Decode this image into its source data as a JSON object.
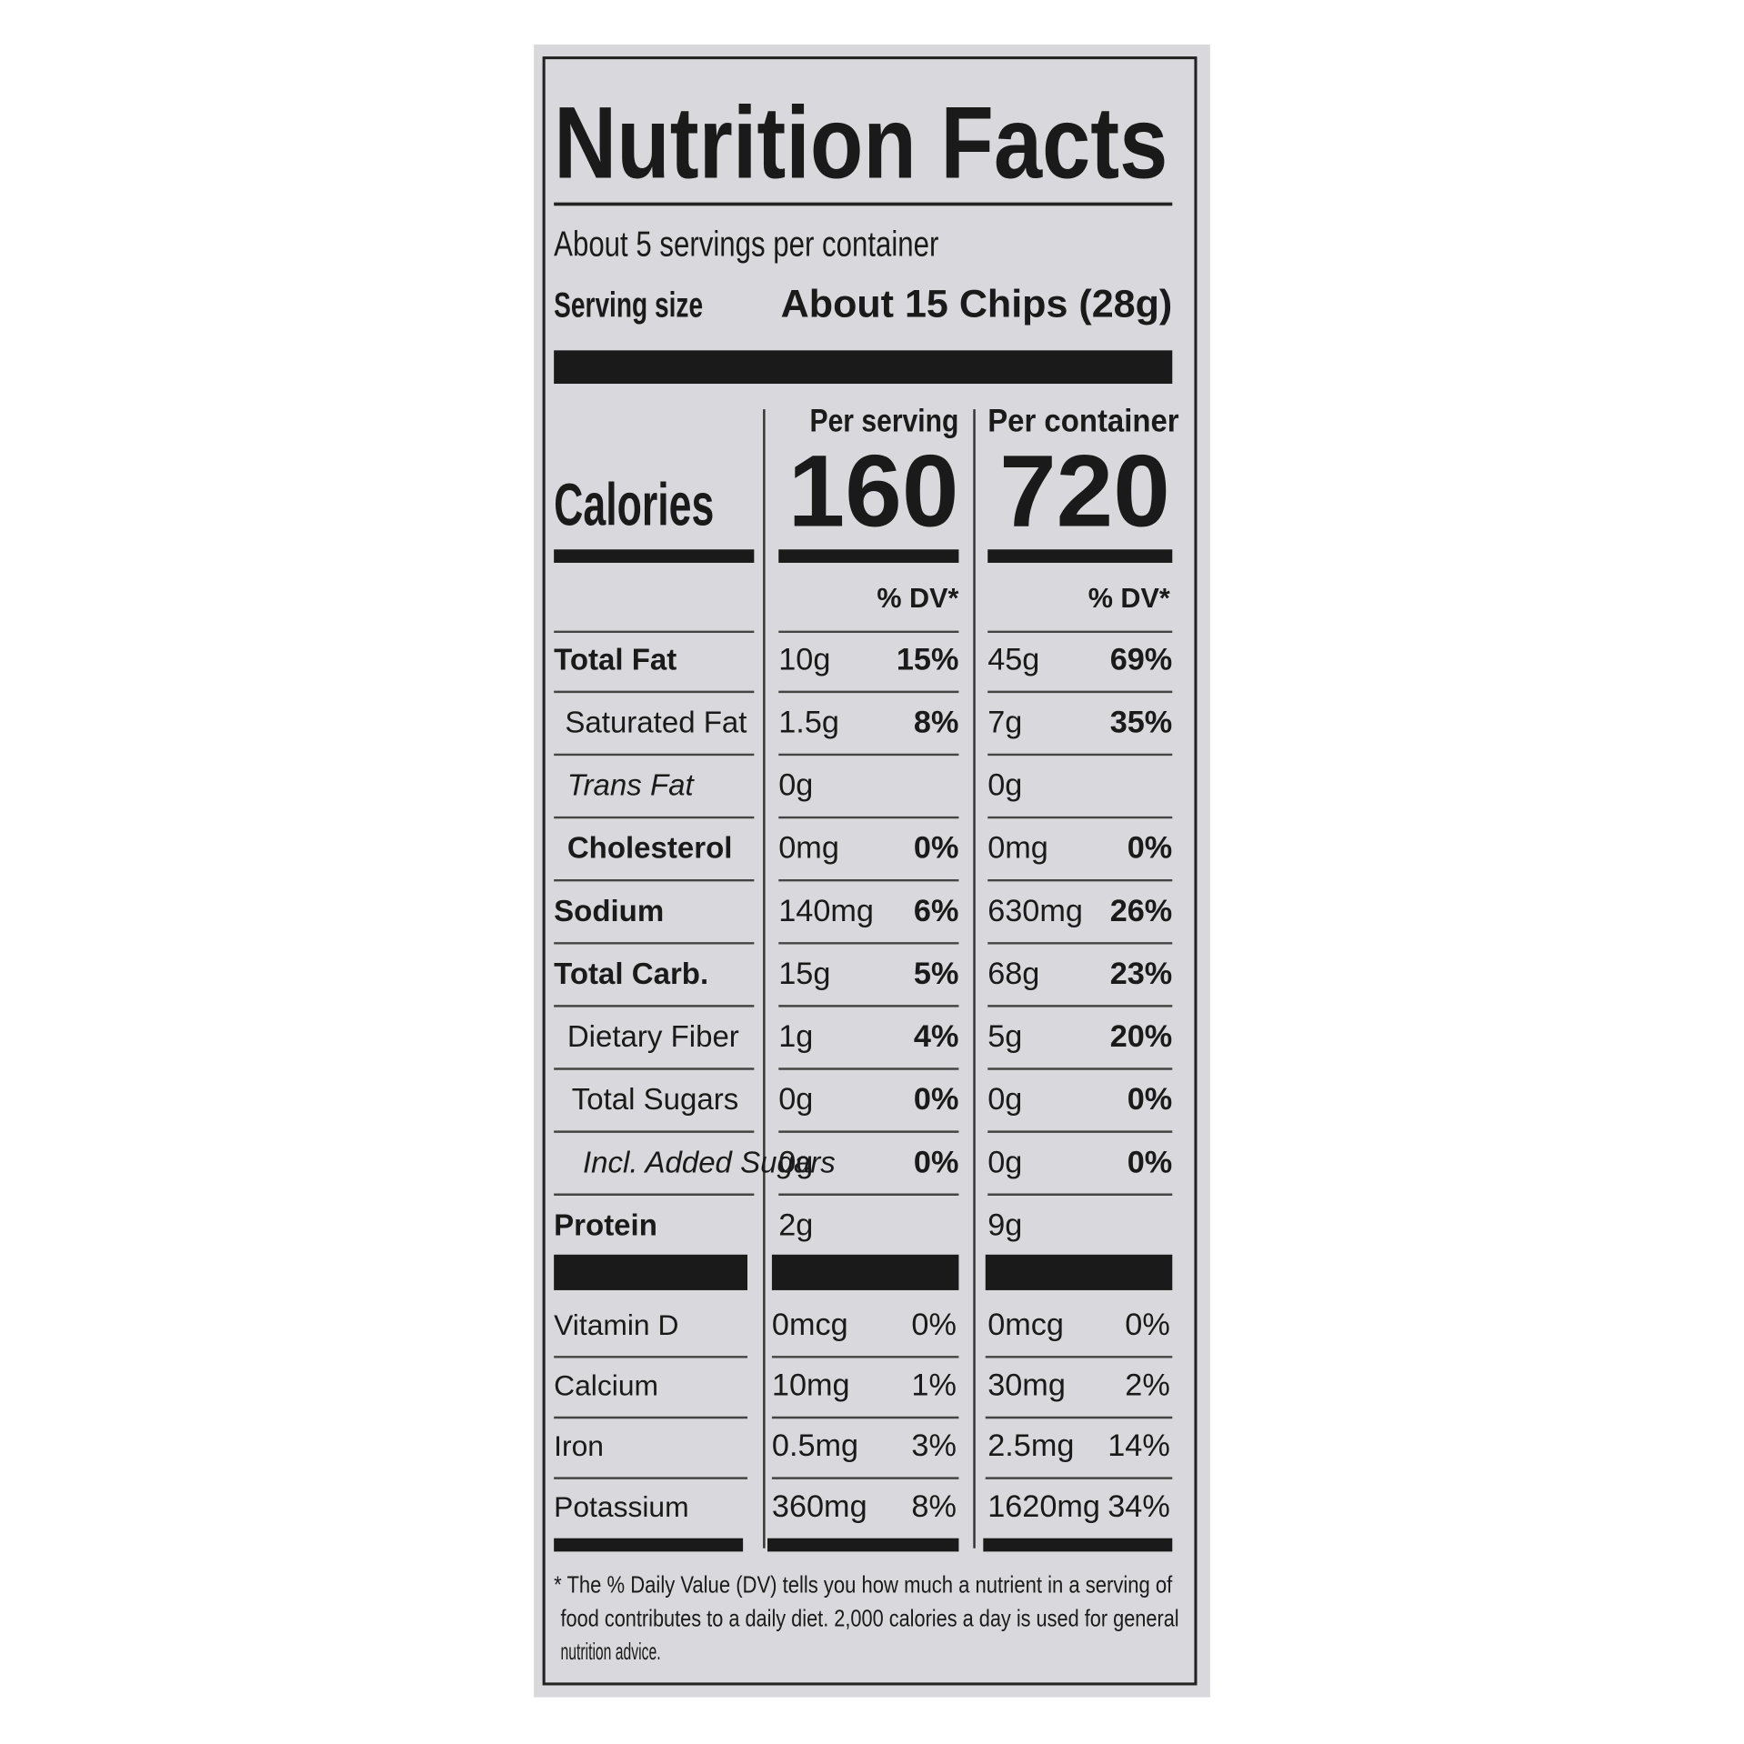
{
  "title": "Nutrition Facts",
  "servings_per_container": "About 5 servings per container",
  "serving_size": {
    "label": "Serving size",
    "value": "About 15 Chips (28g)"
  },
  "columns": [
    "Per serving",
    "Per container"
  ],
  "calories": {
    "label": "Calories",
    "values": [
      "160",
      "720"
    ]
  },
  "dv_header": "% DV*",
  "nutrients": [
    {
      "name": "Total Fat",
      "values": [
        [
          "10g",
          "15%"
        ],
        [
          "45g",
          "69%"
        ]
      ]
    },
    {
      "name": "Saturated Fat",
      "values": [
        [
          "1.5g",
          "8%"
        ],
        [
          "7g",
          "35%"
        ]
      ]
    },
    {
      "name": "Trans Fat",
      "values": [
        [
          "0g"
        ],
        [
          "0g"
        ]
      ]
    },
    {
      "name": "Cholesterol",
      "values": [
        [
          "0mg",
          "0%"
        ],
        [
          "0mg",
          "0%"
        ]
      ]
    },
    {
      "name": "Sodium",
      "values": [
        [
          "140mg",
          "6%"
        ],
        [
          "630mg",
          "26%"
        ]
      ]
    },
    {
      "name": "Total Carb.",
      "values": [
        [
          "15g",
          "5%"
        ],
        [
          "68g",
          "23%"
        ]
      ]
    },
    {
      "name": "Dietary Fiber",
      "values": [
        [
          "1g",
          "4%"
        ],
        [
          "5g",
          "20%"
        ]
      ]
    },
    {
      "name": "Total Sugars",
      "values": [
        [
          "0g",
          "0%"
        ],
        [
          "0g",
          "0%"
        ]
      ]
    },
    {
      "name": "Incl. Added Sugars",
      "values": [
        [
          "0g",
          "0%"
        ],
        [
          "0g",
          "0%"
        ]
      ]
    },
    {
      "name": "Protein",
      "values": [
        [
          "2g"
        ],
        [
          "9g"
        ]
      ]
    }
  ],
  "vitamins": [
    {
      "name": "Vitamin D",
      "values": [
        [
          "0mcg",
          "0%"
        ],
        [
          "0mcg",
          "0%"
        ]
      ]
    },
    {
      "name": "Calcium",
      "values": [
        [
          "10mg",
          "1%"
        ],
        [
          "30mg",
          "2%"
        ]
      ]
    },
    {
      "name": "Iron",
      "values": [
        [
          "0.5mg",
          "3%"
        ],
        [
          "2.5mg",
          "14%"
        ]
      ]
    },
    {
      "name": "Potassium",
      "values": [
        [
          "360mg",
          "8%"
        ],
        [
          "1620mg",
          "34%"
        ]
      ]
    }
  ],
  "footnote": [
    "* The % Daily Value (DV) tells you how much a nutrient in a serving of",
    "food contributes to a daily diet. 2,000 calories a day is used for general",
    "nutrition advice."
  ]
}
